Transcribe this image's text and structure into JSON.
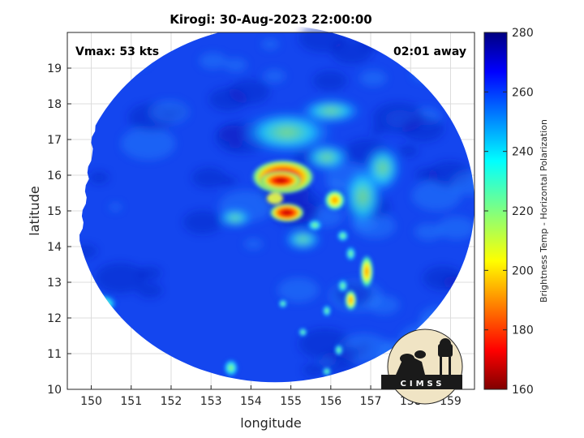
{
  "chart_data": {
    "type": "heatmap",
    "title": "Kirogi: 30-Aug-2023 22:00:00",
    "xlabel": "longitude",
    "ylabel": "latitude",
    "xlim": [
      149.4,
      159.6
    ],
    "ylim": [
      10,
      20
    ],
    "xticks": [
      150,
      151,
      152,
      153,
      154,
      155,
      156,
      157,
      158,
      159
    ],
    "yticks": [
      10,
      11,
      12,
      13,
      14,
      15,
      16,
      17,
      18,
      19
    ],
    "grid": true,
    "annotations": {
      "vmax": "Vmax: 53 kts",
      "offset": "02:01 away"
    },
    "colorbar": {
      "label": "Brightness Temp - Horizontal Polarization",
      "range": [
        160,
        280
      ],
      "ticks": [
        160,
        180,
        200,
        220,
        240,
        260,
        280
      ],
      "colormap": "jet"
    },
    "swath": {
      "center": [
        154.6,
        15.2
      ],
      "radius_deg": 5.0,
      "west_edge_lon": 149.6,
      "background_temp": 262
    },
    "features": [
      {
        "name": "eyewall-north",
        "lon": 154.8,
        "lat": 15.95,
        "temp": 185
      },
      {
        "name": "eyewall-core",
        "lon": 154.75,
        "lat": 15.85,
        "temp": 172
      },
      {
        "name": "eyewall-south",
        "lon": 154.9,
        "lat": 14.95,
        "temp": 190
      },
      {
        "name": "rainband-east",
        "lon": 156.1,
        "lat": 15.3,
        "temp": 205
      },
      {
        "name": "rainband-south-1",
        "lon": 156.9,
        "lat": 13.3,
        "temp": 200
      },
      {
        "name": "rainband-south-2",
        "lon": 156.5,
        "lat": 12.5,
        "temp": 215
      },
      {
        "name": "west-edge-cell",
        "lon": 150.3,
        "lat": 12.4,
        "temp": 222
      },
      {
        "name": "south-cell",
        "lon": 153.5,
        "lat": 10.6,
        "temp": 225
      }
    ],
    "logo_text": "CIMSS"
  }
}
